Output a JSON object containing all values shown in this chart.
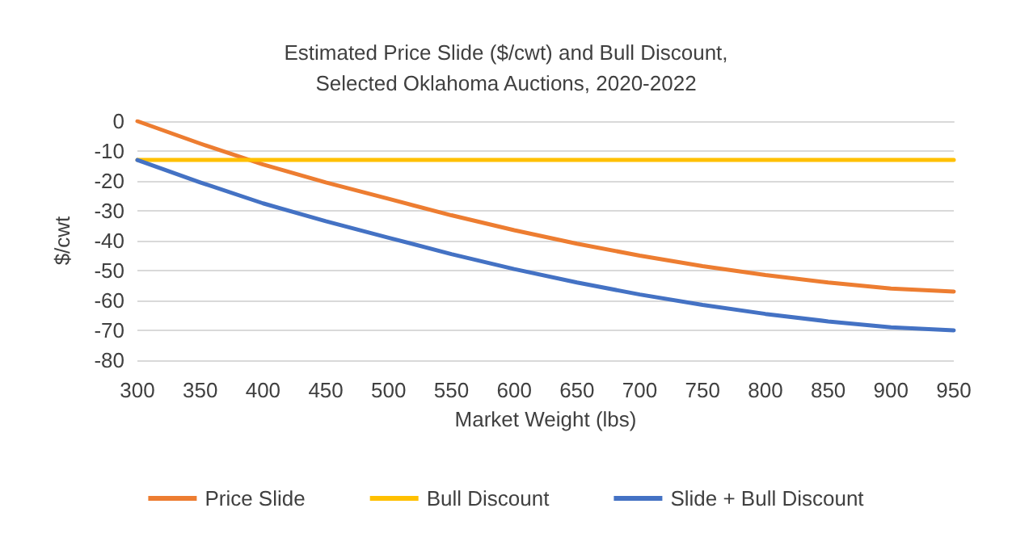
{
  "chart_data": {
    "type": "line",
    "title": "Estimated Price Slide ($/cwt) and Bull Discount,\nSelected Oklahoma Auctions, 2020-2022",
    "xlabel": "Market Weight (lbs)",
    "ylabel": "$/cwt",
    "x": [
      300,
      350,
      400,
      450,
      500,
      550,
      600,
      650,
      700,
      750,
      800,
      850,
      900,
      950
    ],
    "series": [
      {
        "name": "Price Slide",
        "color": "#ed7d31",
        "values": [
          0,
          -7.5,
          -14.5,
          -20.5,
          -26,
          -31.5,
          -36.5,
          -41,
          -45,
          -48.5,
          -51.5,
          -54,
          -56,
          -57
        ]
      },
      {
        "name": "Bull Discount",
        "color": "#ffc000",
        "values": [
          -13,
          -13,
          -13,
          -13,
          -13,
          -13,
          -13,
          -13,
          -13,
          -13,
          -13,
          -13,
          -13,
          -13
        ]
      },
      {
        "name": "Slide + Bull Discount",
        "color": "#4472c4",
        "values": [
          -13,
          -20.5,
          -27.5,
          -33.5,
          -39,
          -44.5,
          -49.5,
          -54,
          -58,
          -61.5,
          -64.5,
          -67,
          -69,
          -70
        ]
      }
    ],
    "xlim": [
      300,
      950
    ],
    "xticks": [
      300,
      350,
      400,
      450,
      500,
      550,
      600,
      650,
      700,
      750,
      800,
      850,
      900,
      950
    ],
    "ylim": [
      -80,
      0
    ],
    "yticks": [
      -80,
      -70,
      -60,
      -50,
      -40,
      -30,
      -20,
      -10,
      0
    ],
    "grid": "y",
    "legend": "bottom",
    "marker": "none",
    "line_style": "solid"
  }
}
